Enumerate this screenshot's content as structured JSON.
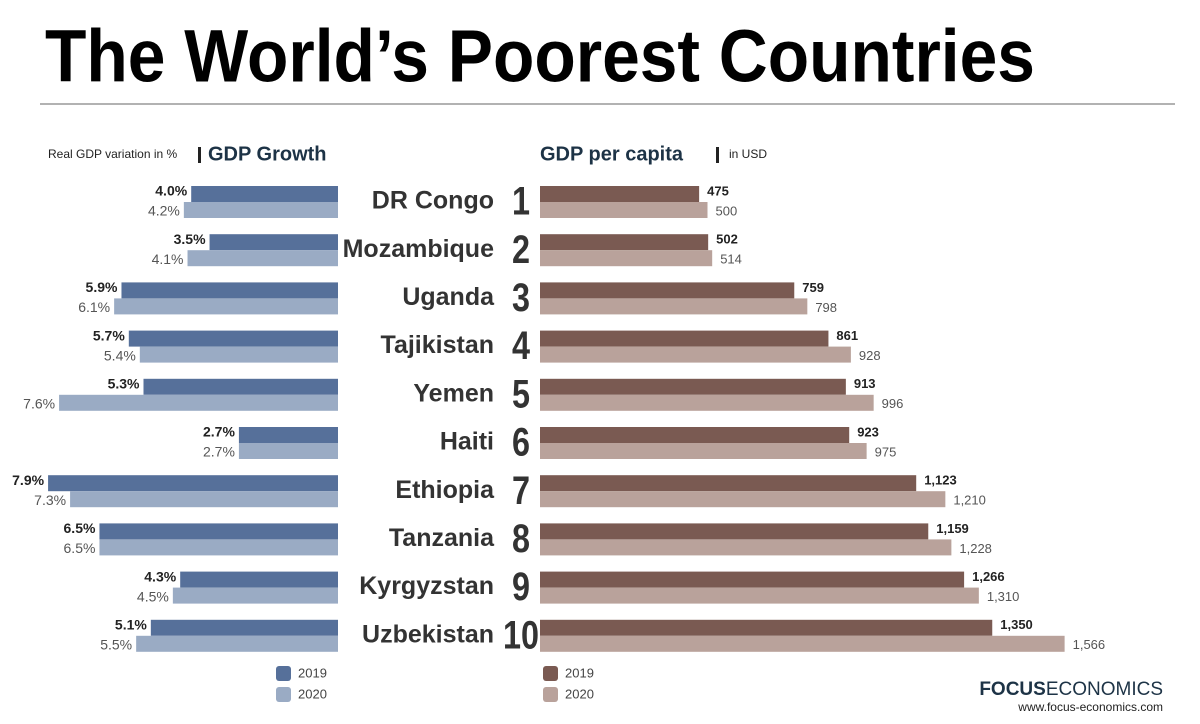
{
  "title": "The World’s Poorest Countries",
  "chart_data": [
    {
      "type": "hbar-left",
      "title": "GDP Growth",
      "axis_label": "Real GDP variation in %",
      "series": [
        {
          "name": "2019",
          "color": "#56709a",
          "values": [
            4.0,
            3.5,
            5.9,
            5.7,
            5.3,
            2.7,
            7.9,
            6.5,
            4.3,
            5.1
          ],
          "value_labels": [
            "4.0%",
            "3.5%",
            "5.9%",
            "5.7%",
            "5.3%",
            "2.7%",
            "7.9%",
            "6.5%",
            "4.3%",
            "5.1%"
          ]
        },
        {
          "name": "2020",
          "color": "#9aabc4",
          "values": [
            4.2,
            4.1,
            6.1,
            5.4,
            7.6,
            2.7,
            7.3,
            6.5,
            4.5,
            5.5
          ],
          "value_labels": [
            "4.2%",
            "4.1%",
            "6.1%",
            "5.4%",
            "7.6%",
            "2.7%",
            "7.3%",
            "6.5%",
            "4.5%",
            "5.5%"
          ]
        }
      ]
    },
    {
      "type": "hbar-right",
      "title": "GDP per capita",
      "axis_label": "in USD",
      "categories": [
        "DR Congo",
        "Mozambique",
        "Uganda",
        "Tajikistan",
        "Yemen",
        "Haiti",
        "Ethiopia",
        "Tanzania",
        "Kyrgyzstan",
        "Uzbekistan"
      ],
      "rank_labels": [
        "1",
        "2",
        "3",
        "4",
        "5",
        "6",
        "7",
        "8",
        "9",
        "10"
      ],
      "series": [
        {
          "name": "2019",
          "color": "#7a5a52",
          "values": [
            475,
            502,
            759,
            861,
            913,
            923,
            1123,
            1159,
            1266,
            1350
          ],
          "value_labels": [
            "475",
            "502",
            "759",
            "861",
            "913",
            "923",
            "1,123",
            "1,159",
            "1,266",
            "1,350"
          ]
        },
        {
          "name": "2020",
          "color": "#b9a29b",
          "values": [
            500,
            514,
            798,
            928,
            996,
            975,
            1210,
            1228,
            1310,
            1566
          ],
          "value_labels": [
            "500",
            "514",
            "798",
            "928",
            "996",
            "975",
            "1,210",
            "1,228",
            "1,310",
            "1,566"
          ]
        }
      ]
    }
  ],
  "footer": {
    "brand_bold": "FOCUS",
    "brand": "ECONOMICS",
    "url": "www.focus-economics.com"
  }
}
